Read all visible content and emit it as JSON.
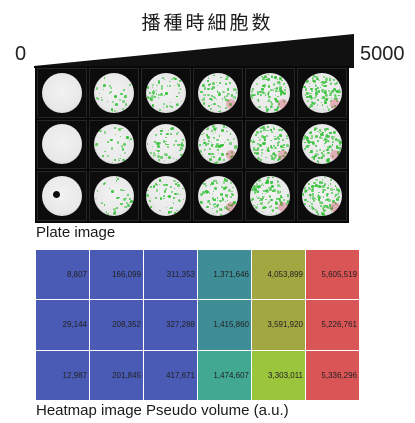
{
  "header": {
    "title": "播種時細胞数",
    "scale_min": "0",
    "scale_max": "5000"
  },
  "plate": {
    "label": "Plate image",
    "rows": 3,
    "columns": 6,
    "well_color": "#e9e9e9",
    "signal_color": "#37c23a",
    "edge_signal_color": "#d8455e"
  },
  "heatmap": {
    "label": "Heatmap image Pseudo volume (a.u.)",
    "colors": [
      "#4a5bb5",
      "#4a5bb5",
      "#4a5bb5",
      "#3e8d97",
      "#9bc53d",
      "#d95556"
    ],
    "row_colors": [
      [
        "#4a5bb5",
        "#4a5bb5",
        "#4a5bb5",
        "#3e8d97",
        "#a2a742",
        "#d95556"
      ],
      [
        "#4a5bb5",
        "#4a5bb5",
        "#4a5bb5",
        "#3e8d97",
        "#a2a742",
        "#d95556"
      ],
      [
        "#4a5bb5",
        "#4a5bb5",
        "#4a5bb5",
        "#42a891",
        "#9bc53d",
        "#d95556"
      ]
    ],
    "rows": [
      [
        "8,807",
        "166,099",
        "311,353",
        "1,371,646",
        "4,053,899",
        "5,605,519"
      ],
      [
        "29,144",
        "208,352",
        "327,288",
        "1,415,860",
        "3,591,920",
        "5,226,761"
      ],
      [
        "12,987",
        "201,845",
        "417,671",
        "1,474,607",
        "3,303,011",
        "5,336,296"
      ]
    ]
  }
}
